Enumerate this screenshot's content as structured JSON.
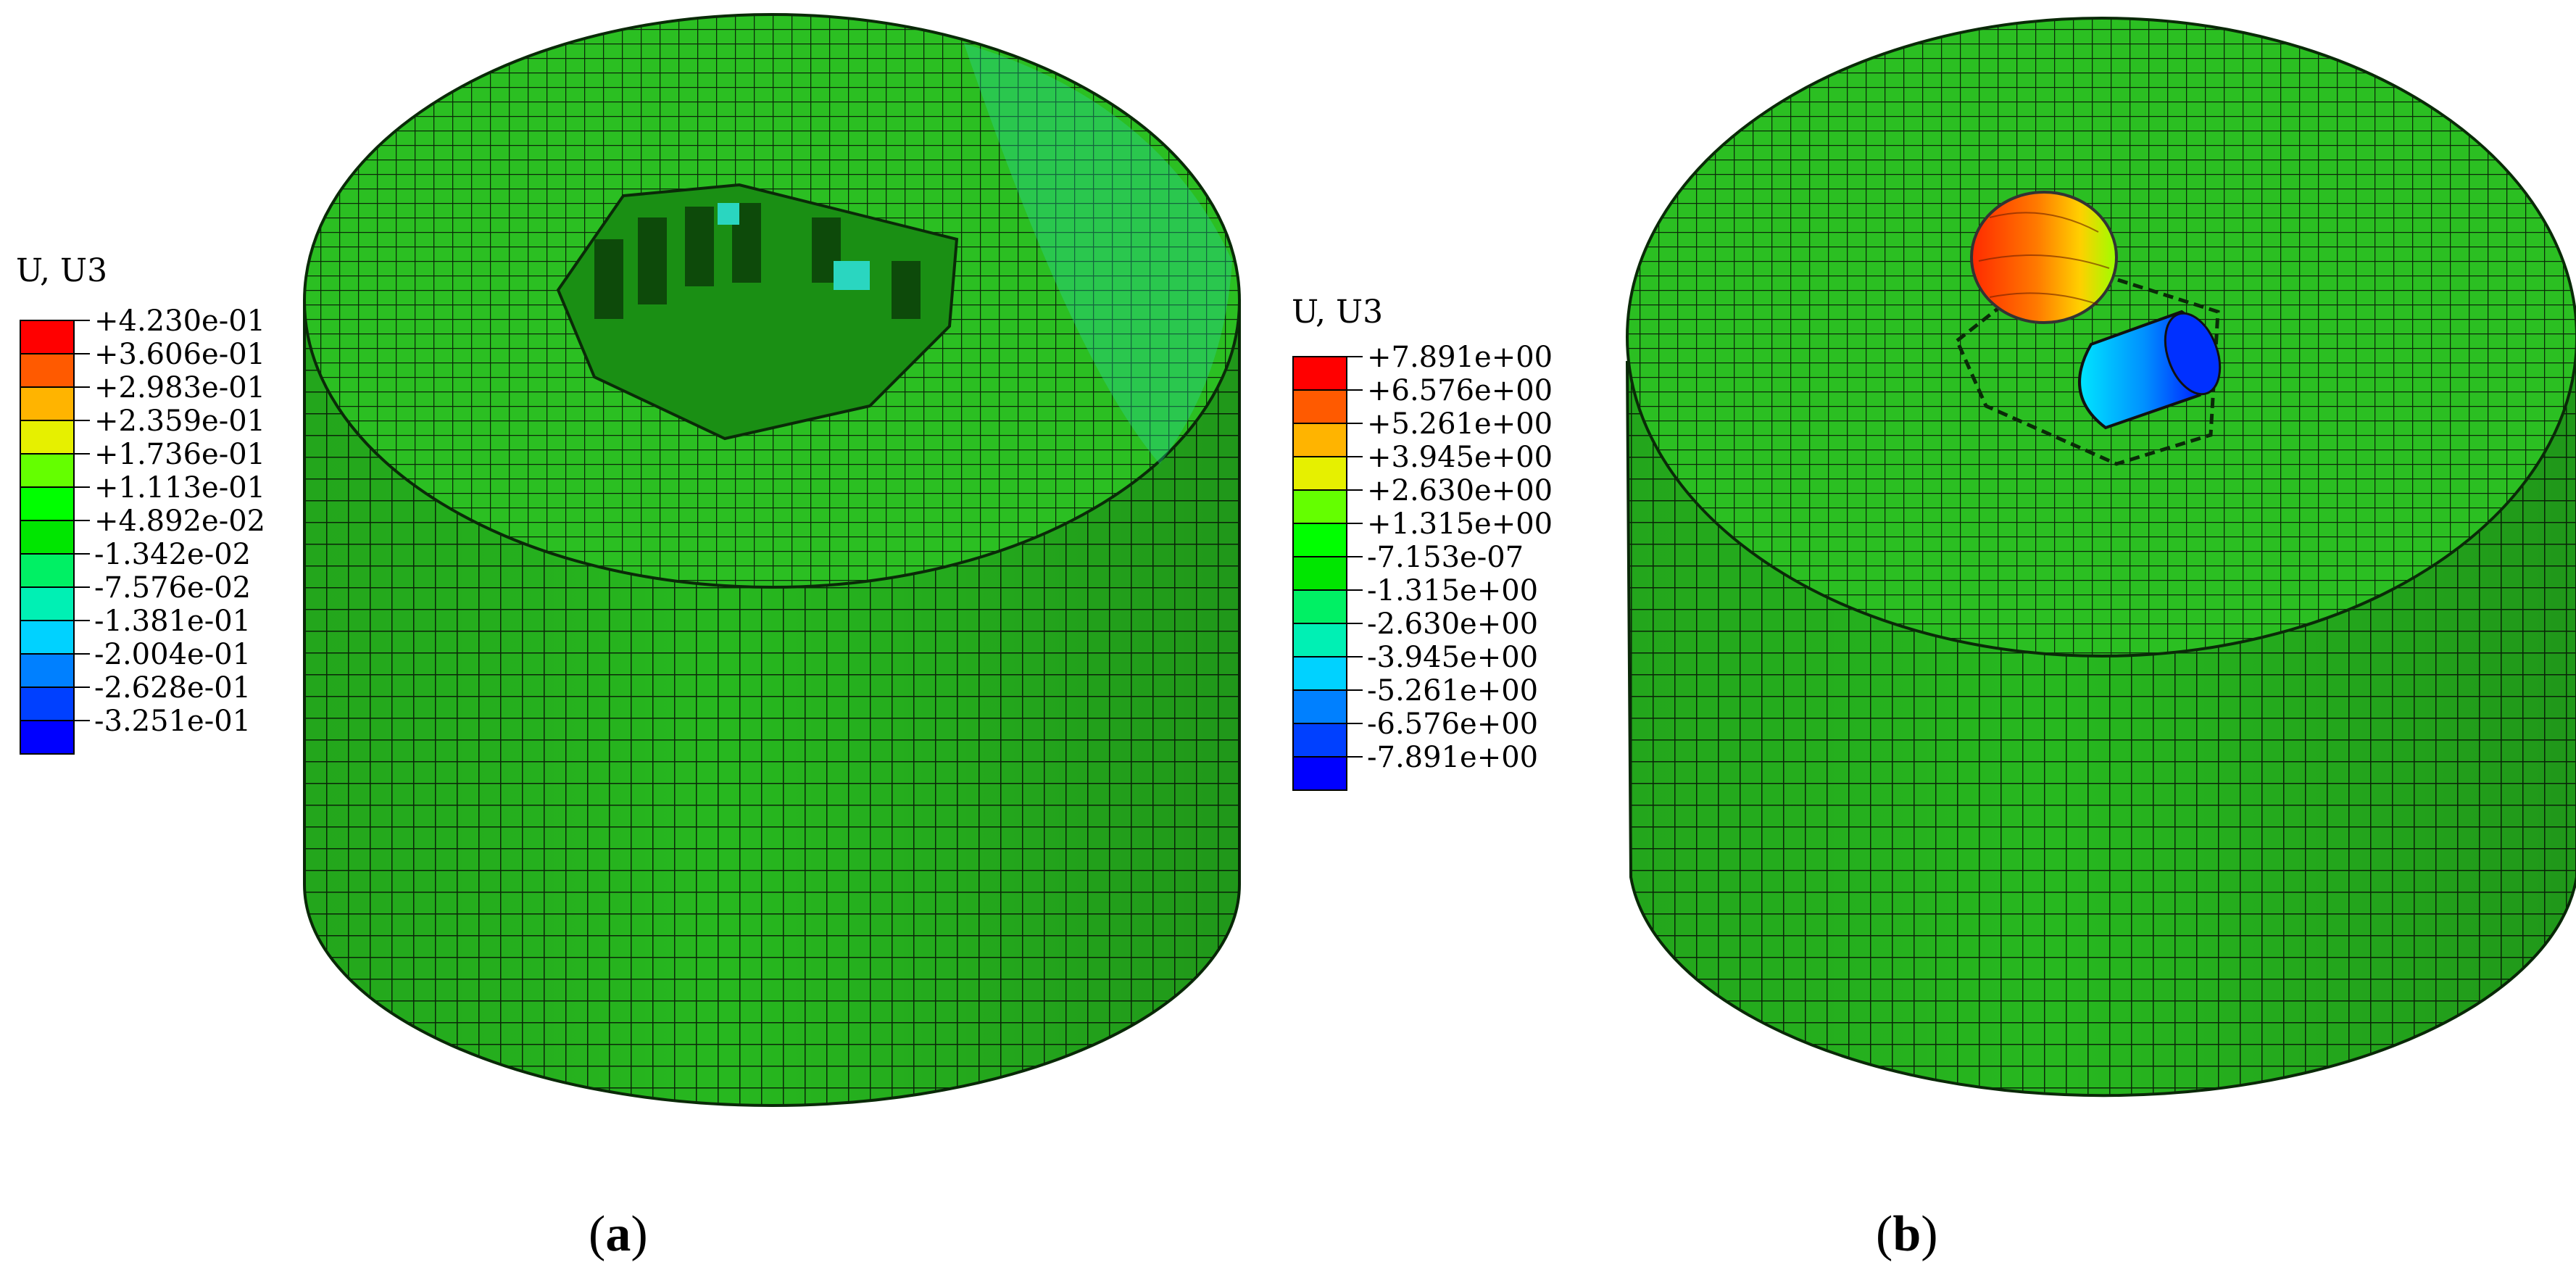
{
  "colors": {
    "mesh_green": "#27b81f",
    "mesh_green_dark": "#1f9a18",
    "mesh_line": "#0a2a08",
    "bg": "#ffffff"
  },
  "panels": [
    {
      "id": "a",
      "legend": {
        "title": "U, U3",
        "values": [
          "+4.230e-01",
          "+3.606e-01",
          "+2.983e-01",
          "+2.359e-01",
          "+1.736e-01",
          "+1.113e-01",
          "+4.892e-02",
          "-1.342e-02",
          "-7.576e-02",
          "-1.381e-01",
          "-2.004e-01",
          "-2.628e-01",
          "-3.251e-01"
        ],
        "colors": [
          "#ff0000",
          "#ff5a00",
          "#ffb400",
          "#e6f000",
          "#64ff00",
          "#00ff00",
          "#00e600",
          "#00f064",
          "#00f0b4",
          "#00d2ff",
          "#0080ff",
          "#0040ff",
          "#0000ff"
        ]
      },
      "caption": {
        "open": "(",
        "letter": "a",
        "close": ")"
      }
    },
    {
      "id": "b",
      "legend": {
        "title": "U, U3",
        "values": [
          "+7.891e+00",
          "+6.576e+00",
          "+5.261e+00",
          "+3.945e+00",
          "+2.630e+00",
          "+1.315e+00",
          "-7.153e-07",
          "-1.315e+00",
          "-2.630e+00",
          "-3.945e+00",
          "-5.261e+00",
          "-6.576e+00",
          "-7.891e+00"
        ],
        "colors": [
          "#ff0000",
          "#ff5a00",
          "#ffb400",
          "#e6f000",
          "#64ff00",
          "#00ff00",
          "#00e600",
          "#00f064",
          "#00f0b4",
          "#00d2ff",
          "#0080ff",
          "#0040ff",
          "#0000ff"
        ]
      },
      "caption": {
        "open": "(",
        "letter": "b",
        "close": ")"
      }
    }
  ]
}
